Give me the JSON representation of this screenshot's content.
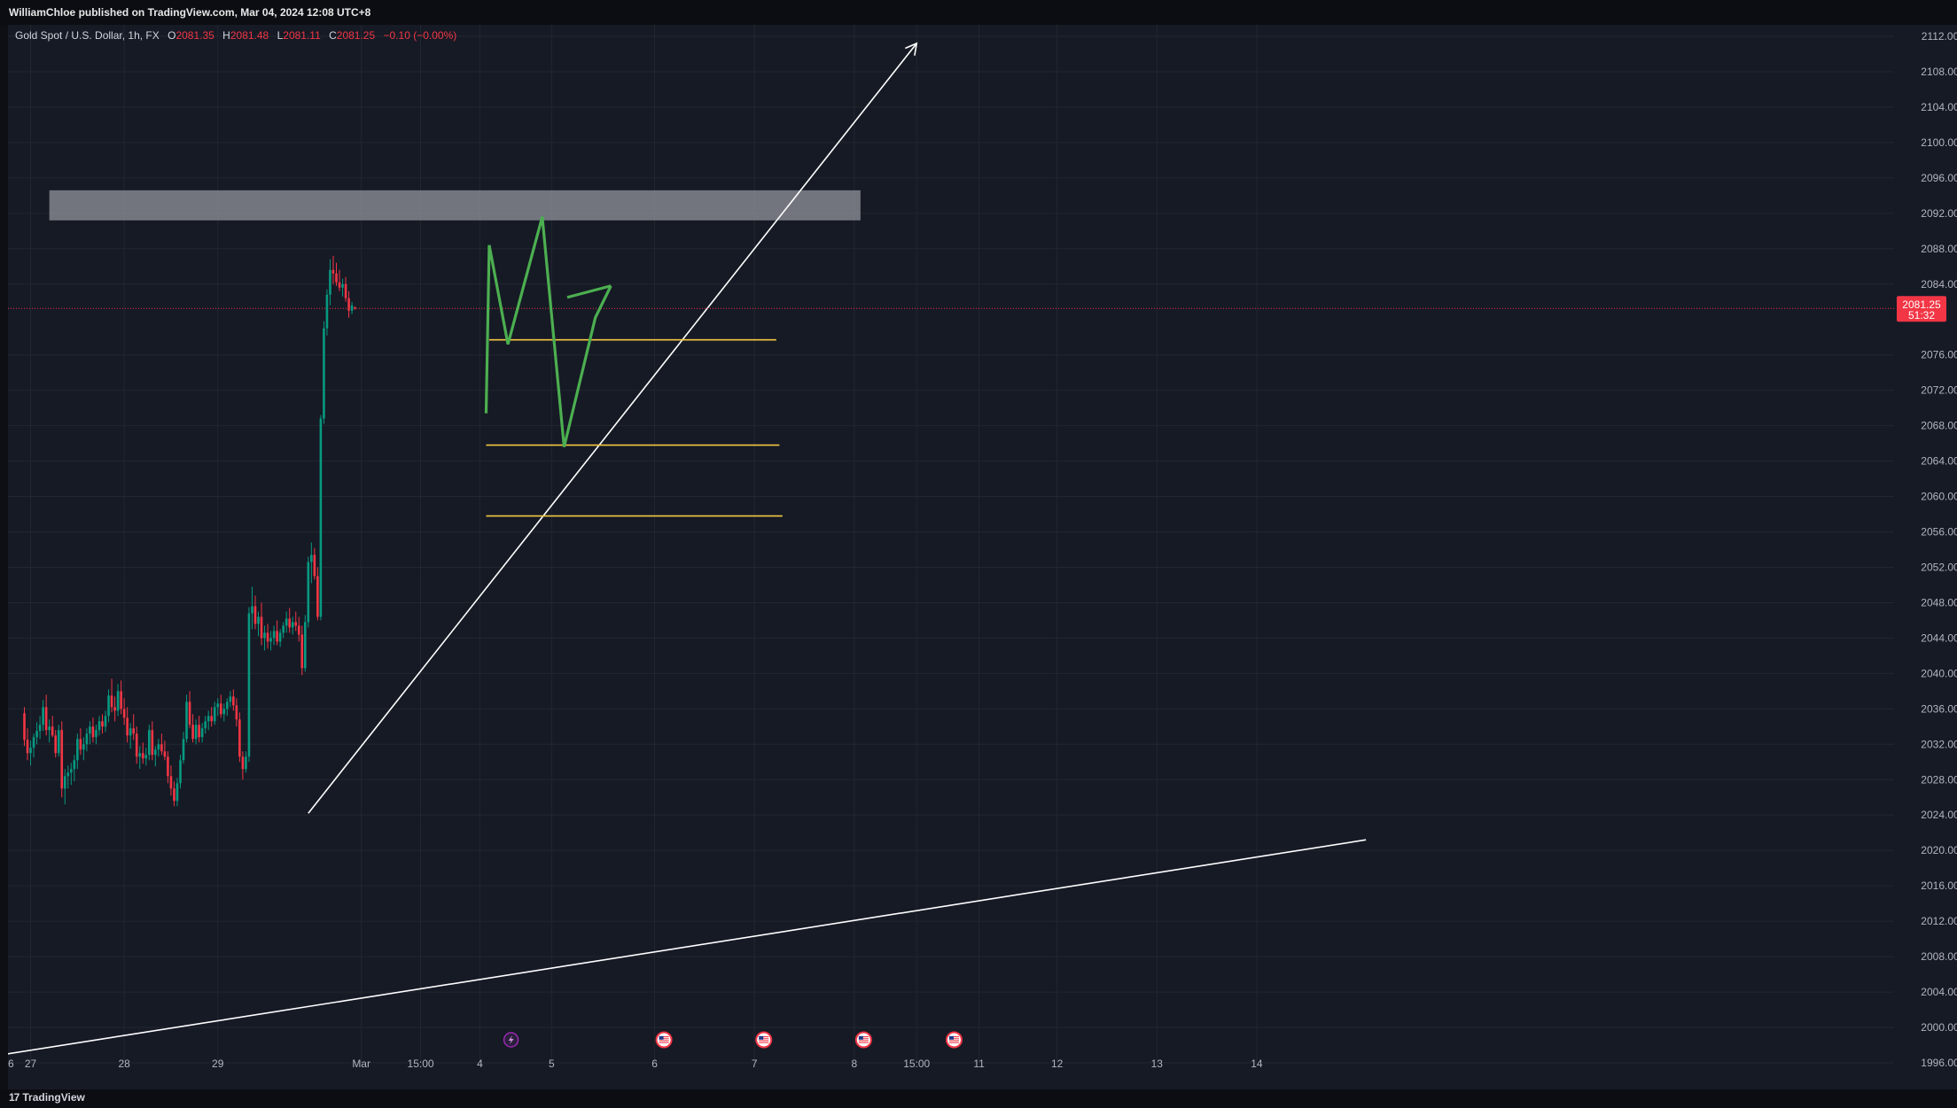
{
  "publisher_line": "WilliamChloe published on TradingView.com, Mar 04, 2024 12:08 UTC+8",
  "legend": {
    "symbol": "Gold Spot / U.S. Dollar, 1h, FX",
    "open_label": "O",
    "open": "2081.35",
    "high_label": "H",
    "high": "2081.48",
    "low_label": "L",
    "low": "2081.11",
    "close_label": "C",
    "close": "2081.25",
    "change": "−0.10 (−0.00%)"
  },
  "price_tag": {
    "price": "2081.25",
    "countdown": "51:32"
  },
  "branding": {
    "logo_text": "TradingView",
    "logo_mark": "17"
  },
  "colors": {
    "background": "#161a25",
    "up": "#089981",
    "down": "#f23645",
    "projection": "#4caf50",
    "levels": "#f5c842",
    "trendline": "#ffffff",
    "zone": "#9598a1",
    "grid": "#22262f",
    "price_tag": "#f23645"
  },
  "chart_data": {
    "type": "candlestick",
    "timeframe": "1h",
    "y_axis": {
      "range": [
        1996,
        2112
      ],
      "ticks": [
        "2112.00",
        "2108.00",
        "2104.00",
        "2100.00",
        "2096.00",
        "2092.00",
        "2088.00",
        "2084.00",
        "2076.00",
        "2072.00",
        "2068.00",
        "2064.00",
        "2060.00",
        "2056.00",
        "2052.00",
        "2048.00",
        "2044.00",
        "2040.00",
        "2036.00",
        "2032.00",
        "2028.00",
        "2024.00",
        "2020.00",
        "2016.00",
        "2012.00",
        "2008.00",
        "2004.00",
        "2000.00",
        "1996.00"
      ],
      "side": "right"
    },
    "x_axis": {
      "ticks": [
        "6",
        "27",
        "28",
        "29",
        "Mar",
        "15:00",
        "4",
        "5",
        "6",
        "7",
        "8",
        "15:00",
        "11",
        "12",
        "13",
        "14"
      ],
      "tick_index": [
        -19.5,
        2,
        32,
        62,
        108,
        127,
        146,
        169,
        202,
        234,
        266,
        286,
        306,
        331,
        363,
        395
      ]
    },
    "candles": [
      [
        2035.5,
        2036.2,
        2031.8,
        2032.5
      ],
      [
        2032.5,
        2033.8,
        2030.2,
        2031.0
      ],
      [
        2031.0,
        2032.4,
        2029.6,
        2031.6
      ],
      [
        2031.6,
        2033.2,
        2030.5,
        2032.8
      ],
      [
        2032.8,
        2034.5,
        2032.0,
        2033.5
      ],
      [
        2033.5,
        2035.2,
        2032.6,
        2034.2
      ],
      [
        2034.2,
        2037.0,
        2033.5,
        2036.2
      ],
      [
        2036.2,
        2037.6,
        2033.0,
        2033.6
      ],
      [
        2033.6,
        2034.8,
        2032.2,
        2034.0
      ],
      [
        2034.0,
        2035.2,
        2032.8,
        2033.0
      ],
      [
        2033.0,
        2033.6,
        2030.5,
        2031.0
      ],
      [
        2031.0,
        2034.2,
        2030.6,
        2033.6
      ],
      [
        2033.6,
        2034.6,
        2026.0,
        2027.0
      ],
      [
        2027.0,
        2029.2,
        2025.2,
        2028.4
      ],
      [
        2028.4,
        2029.6,
        2027.0,
        2028.8
      ],
      [
        2028.8,
        2029.9,
        2027.4,
        2029.2
      ],
      [
        2029.2,
        2030.8,
        2027.8,
        2030.2
      ],
      [
        2030.2,
        2033.2,
        2029.2,
        2032.6
      ],
      [
        2032.6,
        2033.8,
        2030.8,
        2031.4
      ],
      [
        2031.4,
        2032.8,
        2030.2,
        2032.0
      ],
      [
        2032.0,
        2033.8,
        2031.2,
        2033.2
      ],
      [
        2033.2,
        2034.6,
        2032.0,
        2034.0
      ],
      [
        2034.0,
        2035.0,
        2032.2,
        2032.8
      ],
      [
        2032.8,
        2034.2,
        2032.0,
        2033.6
      ],
      [
        2033.6,
        2035.2,
        2033.0,
        2034.6
      ],
      [
        2034.6,
        2035.4,
        2033.2,
        2034.0
      ],
      [
        2034.0,
        2035.8,
        2033.4,
        2035.2
      ],
      [
        2035.2,
        2038.2,
        2034.5,
        2037.5
      ],
      [
        2037.5,
        2039.4,
        2035.6,
        2036.2
      ],
      [
        2036.2,
        2037.4,
        2034.6,
        2035.8
      ],
      [
        2035.8,
        2038.8,
        2035.2,
        2038.0
      ],
      [
        2038.0,
        2039.2,
        2035.4,
        2036.0
      ],
      [
        2036.0,
        2037.2,
        2034.2,
        2035.0
      ],
      [
        2035.0,
        2036.2,
        2032.2,
        2033.0
      ],
      [
        2033.0,
        2034.4,
        2031.5,
        2033.8
      ],
      [
        2033.8,
        2035.4,
        2032.5,
        2033.2
      ],
      [
        2033.2,
        2034.0,
        2029.8,
        2030.6
      ],
      [
        2030.6,
        2031.8,
        2029.2,
        2031.0
      ],
      [
        2031.0,
        2032.2,
        2029.8,
        2030.4
      ],
      [
        2030.4,
        2031.6,
        2029.6,
        2030.8
      ],
      [
        2030.8,
        2034.2,
        2030.2,
        2033.6
      ],
      [
        2033.6,
        2034.6,
        2030.2,
        2030.8
      ],
      [
        2030.8,
        2031.8,
        2029.5,
        2031.4
      ],
      [
        2031.4,
        2032.6,
        2030.6,
        2032.0
      ],
      [
        2032.0,
        2033.2,
        2030.8,
        2031.2
      ],
      [
        2031.2,
        2032.4,
        2030.2,
        2030.6
      ],
      [
        2030.6,
        2031.2,
        2027.6,
        2028.4
      ],
      [
        2028.4,
        2029.6,
        2026.2,
        2027.0
      ],
      [
        2027.0,
        2027.8,
        2025.0,
        2025.6
      ],
      [
        2025.6,
        2028.2,
        2025.0,
        2027.6
      ],
      [
        2027.6,
        2030.8,
        2027.0,
        2030.2
      ],
      [
        2030.2,
        2033.4,
        2029.8,
        2032.6
      ],
      [
        2032.6,
        2037.6,
        2032.2,
        2036.8
      ],
      [
        2036.8,
        2038.0,
        2033.8,
        2034.2
      ],
      [
        2034.2,
        2035.4,
        2032.2,
        2032.6
      ],
      [
        2032.6,
        2034.8,
        2032.0,
        2034.2
      ],
      [
        2034.2,
        2035.2,
        2032.2,
        2032.8
      ],
      [
        2032.8,
        2034.4,
        2032.2,
        2033.8
      ],
      [
        2033.8,
        2035.2,
        2033.2,
        2034.6
      ],
      [
        2034.6,
        2035.8,
        2033.6,
        2035.2
      ],
      [
        2035.2,
        2036.2,
        2034.0,
        2034.6
      ],
      [
        2034.6,
        2036.8,
        2034.2,
        2036.2
      ],
      [
        2036.2,
        2037.2,
        2035.2,
        2036.6
      ],
      [
        2036.6,
        2037.6,
        2035.0,
        2035.4
      ],
      [
        2035.4,
        2036.6,
        2034.6,
        2036.0
      ],
      [
        2036.0,
        2037.2,
        2035.2,
        2036.8
      ],
      [
        2036.8,
        2038.0,
        2036.2,
        2037.4
      ],
      [
        2037.4,
        2038.2,
        2035.8,
        2036.4
      ],
      [
        2036.4,
        2037.2,
        2034.0,
        2034.8
      ],
      [
        2034.8,
        2035.6,
        2030.0,
        2030.6
      ],
      [
        2030.6,
        2031.2,
        2028.0,
        2029.2
      ],
      [
        2029.2,
        2031.2,
        2028.8,
        2030.6
      ],
      [
        2030.6,
        2047.5,
        2030.0,
        2046.8
      ],
      [
        2046.8,
        2049.8,
        2045.0,
        2047.6
      ],
      [
        2047.6,
        2048.8,
        2045.0,
        2045.6
      ],
      [
        2045.6,
        2047.0,
        2044.2,
        2046.4
      ],
      [
        2046.4,
        2048.0,
        2043.2,
        2044.0
      ],
      [
        2044.0,
        2045.4,
        2042.6,
        2044.6
      ],
      [
        2044.6,
        2045.6,
        2042.8,
        2043.6
      ],
      [
        2043.6,
        2044.8,
        2042.6,
        2044.0
      ],
      [
        2044.0,
        2045.4,
        2043.2,
        2044.8
      ],
      [
        2044.8,
        2046.0,
        2043.2,
        2043.6
      ],
      [
        2043.6,
        2045.0,
        2043.0,
        2044.6
      ],
      [
        2044.6,
        2045.8,
        2044.0,
        2045.4
      ],
      [
        2045.4,
        2047.0,
        2044.6,
        2046.2
      ],
      [
        2046.2,
        2047.4,
        2044.6,
        2045.2
      ],
      [
        2045.2,
        2046.4,
        2044.4,
        2045.8
      ],
      [
        2045.8,
        2047.0,
        2044.8,
        2045.4
      ],
      [
        2045.4,
        2046.4,
        2043.6,
        2044.4
      ],
      [
        2044.4,
        2045.4,
        2039.8,
        2040.6
      ],
      [
        2040.6,
        2046.6,
        2040.2,
        2045.8
      ],
      [
        2045.8,
        2053.2,
        2045.2,
        2052.6
      ],
      [
        2052.6,
        2054.8,
        2050.2,
        2053.4
      ],
      [
        2053.4,
        2054.2,
        2050.6,
        2051.0
      ],
      [
        2051.0,
        2052.0,
        2046.0,
        2046.4
      ],
      [
        2046.4,
        2069.2,
        2046.0,
        2068.8
      ],
      [
        2068.8,
        2079.8,
        2068.2,
        2079.0
      ],
      [
        2079.0,
        2083.4,
        2078.2,
        2082.8
      ],
      [
        2082.8,
        2086.8,
        2081.6,
        2085.6
      ],
      [
        2085.6,
        2087.2,
        2084.0,
        2085.2
      ],
      [
        2085.2,
        2086.4,
        2083.8,
        2084.2
      ],
      [
        2084.2,
        2085.6,
        2083.2,
        2083.6
      ],
      [
        2083.6,
        2084.6,
        2082.6,
        2084.0
      ],
      [
        2084.0,
        2084.8,
        2082.0,
        2082.4
      ],
      [
        2082.4,
        2083.2,
        2080.2,
        2081.0
      ],
      [
        2081.0,
        2082.0,
        2080.6,
        2081.6
      ],
      [
        2081.35,
        2081.48,
        2081.11,
        2081.25
      ]
    ],
    "current_price": 2081.25,
    "resistance_zone": {
      "low": 2091.2,
      "high": 2094.6,
      "from_index": 8,
      "to_index": 268
    },
    "support_levels": [
      {
        "price": 2077.7,
        "from_index": 149,
        "to_index": 241
      },
      {
        "price": 2065.8,
        "from_index": 148,
        "to_index": 242
      },
      {
        "price": 2057.8,
        "from_index": 148,
        "to_index": 243
      }
    ],
    "projection_path": [
      [
        148,
        2069.4
      ],
      [
        149,
        2088.4
      ],
      [
        155,
        2077.2
      ],
      [
        166,
        2091.6
      ],
      [
        173,
        2065.6
      ],
      [
        183,
        2080.2
      ],
      [
        188,
        2083.8
      ]
    ],
    "projection_arrow": {
      "tip": [
        188,
        2083.8
      ],
      "wing": [
        174,
        2082.5
      ]
    },
    "trendlines": [
      {
        "from": [
          91,
          2024.2
        ],
        "to": [
          286,
          2111.2
        ],
        "arrow": true
      },
      {
        "from": [
          -20,
          1996.2
        ],
        "to": [
          430,
          2021.2
        ],
        "arrow": false
      }
    ],
    "event_markers": [
      {
        "index": 156,
        "icon": "lightning-icon"
      },
      {
        "index": 205,
        "icon": "us-flag-icon"
      },
      {
        "index": 237,
        "icon": "us-flag-icon"
      },
      {
        "index": 269,
        "icon": "us-flag-icon"
      },
      {
        "index": 298,
        "icon": "us-flag-icon"
      }
    ]
  }
}
